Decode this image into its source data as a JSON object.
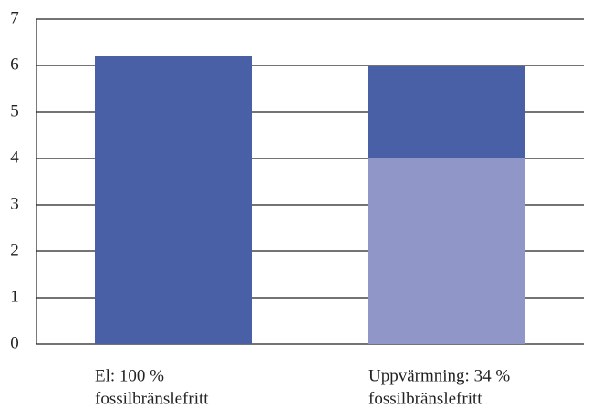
{
  "chart_data": {
    "type": "stacked_bar",
    "categories": [
      [
        "El: 100 %",
        "fossilbränslefritt"
      ],
      [
        "Uppvärmning: 34 %",
        "fossilbränslefritt"
      ]
    ],
    "series": [
      {
        "color": "#9097c8",
        "values": [
          0,
          4
        ]
      },
      {
        "color": "#4a60a6",
        "values": [
          6.2,
          2
        ]
      }
    ],
    "ylim": [
      0,
      7
    ],
    "yticks": [
      0,
      1,
      2,
      3,
      4,
      5,
      6,
      7
    ],
    "grid": true
  }
}
